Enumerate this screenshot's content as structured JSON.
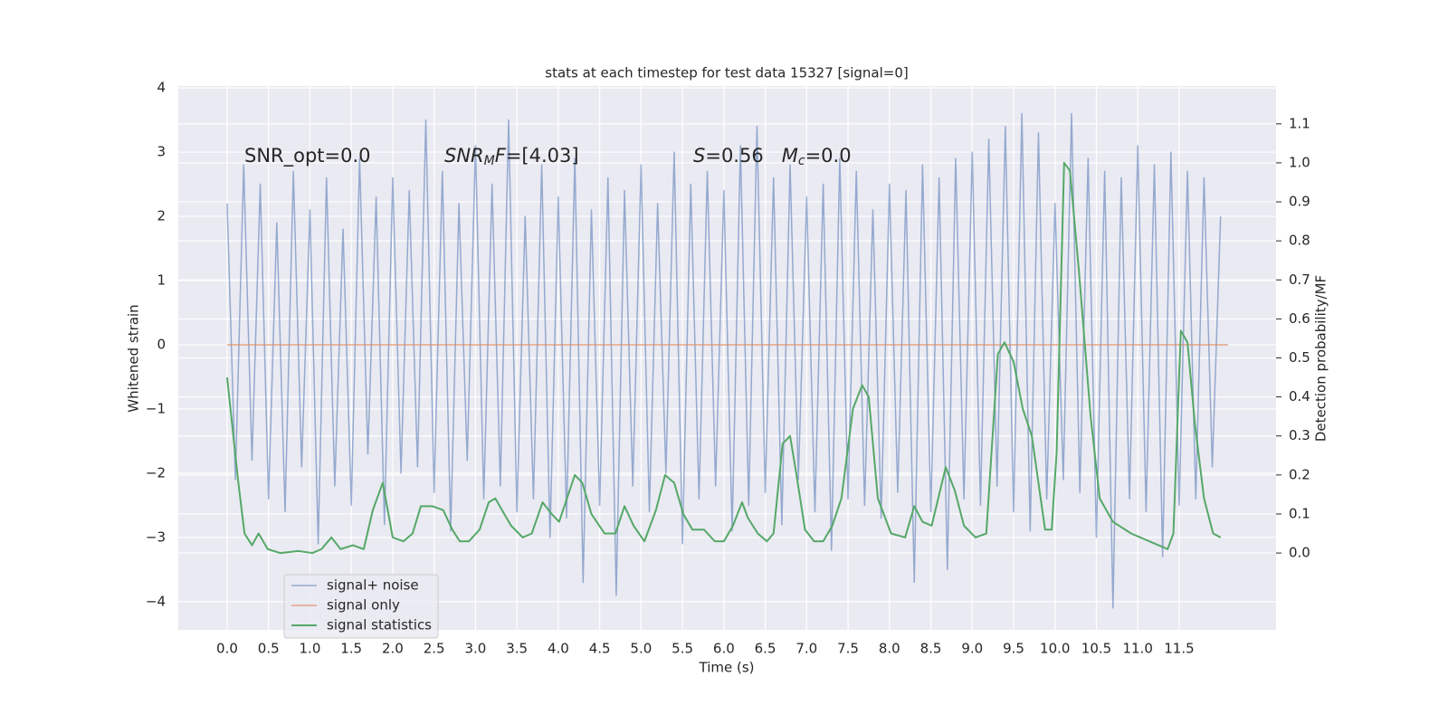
{
  "chart_data": {
    "type": "line",
    "title": "stats at each timestep for test data 15327 [signal=0]",
    "x_label": "Time (s)",
    "y_label": "Whitened strain",
    "y2_label": "Detection probability/MF",
    "grid": true,
    "legend_position": "lower left",
    "xlim": [
      -0.59,
      12.67
    ],
    "ylim": [
      -4.44,
      4.03
    ],
    "y2lim": [
      -0.197,
      1.197
    ],
    "xticks": [
      {
        "value": 0,
        "label": "0.0"
      },
      0.5,
      {
        "value": 1,
        "label": "1.0"
      },
      1.5,
      {
        "value": 2,
        "label": "2.0"
      },
      2.5,
      {
        "value": 3,
        "label": "3.0"
      },
      3.5,
      {
        "value": 4,
        "label": "4.0"
      },
      4.5,
      {
        "value": 5,
        "label": "5.0"
      },
      5.5,
      {
        "value": 6,
        "label": "6.0"
      },
      6.5,
      {
        "value": 7,
        "label": "7.0"
      },
      7.5,
      {
        "value": 8,
        "label": "8.0"
      },
      8.5,
      {
        "value": 9,
        "label": "9.0"
      },
      9.5,
      {
        "value": 10,
        "label": "10.0"
      },
      10.5,
      {
        "value": 11,
        "label": "11.0"
      },
      11.5
    ],
    "yticks": [
      {
        "value": -4,
        "label": "−4"
      },
      {
        "value": -3,
        "label": "−3"
      },
      {
        "value": -2,
        "label": "−2"
      },
      {
        "value": -1,
        "label": "−1"
      },
      0,
      1,
      2,
      3,
      4
    ],
    "y2ticks": [
      {
        "value": 0,
        "label": "0.0"
      },
      0.1,
      0.2,
      0.3,
      0.4,
      0.5,
      0.6,
      0.7,
      0.8,
      0.9,
      {
        "value": 1,
        "label": "1.0"
      },
      1.1
    ],
    "annotations": [
      {
        "parts": [
          {
            "text": "SNR_opt=0.0"
          }
        ]
      },
      {
        "parts": [
          {
            "text": "SNR",
            "italic": true
          },
          {
            "text": "M",
            "italic": true,
            "sub": true
          },
          {
            "text": "F",
            "italic": true
          },
          {
            "text": "=[4.03]"
          }
        ]
      },
      {
        "parts": [
          {
            "text": "S",
            "italic": true
          },
          {
            "text": "=0.56   "
          },
          {
            "text": "M",
            "italic": true
          },
          {
            "text": "c",
            "italic": true,
            "sub": true
          },
          {
            "text": "=0.0"
          }
        ]
      }
    ],
    "series": [
      {
        "name": "signal+ noise",
        "color": "#4c72b0",
        "x": [
          0,
          0.1,
          0.2,
          0.3,
          0.4,
          0.5,
          0.6,
          0.7,
          0.8,
          0.9,
          1,
          1.1,
          1.2,
          1.3,
          1.4,
          1.5,
          1.6,
          1.7,
          1.8,
          1.9,
          2,
          2.1,
          2.2,
          2.3,
          2.4,
          2.5,
          2.6,
          2.7,
          2.8,
          2.9,
          3,
          3.1,
          3.2,
          3.3,
          3.4,
          3.5,
          3.6,
          3.7,
          3.8,
          3.9,
          4,
          4.1,
          4.2,
          4.3,
          4.4,
          4.5,
          4.6,
          4.7,
          4.8,
          4.9,
          5,
          5.1,
          5.2,
          5.3,
          5.4,
          5.5,
          5.6,
          5.7,
          5.8,
          5.9,
          6,
          6.1,
          6.2,
          6.3,
          6.4,
          6.5,
          6.6,
          6.7,
          6.8,
          6.9,
          7,
          7.1,
          7.2,
          7.3,
          7.4,
          7.5,
          7.6,
          7.7,
          7.8,
          7.9,
          8,
          8.1,
          8.2,
          8.3,
          8.4,
          8.5,
          8.6,
          8.7,
          8.8,
          8.9,
          9,
          9.1,
          9.2,
          9.3,
          9.4,
          9.5,
          9.6,
          9.7,
          9.8,
          9.9,
          10,
          10.1,
          10.2,
          10.3,
          10.4,
          10.5,
          10.6,
          10.7,
          10.8,
          10.9,
          11,
          11.1,
          11.2,
          11.3,
          11.4,
          11.5,
          11.6,
          11.7,
          11.8,
          11.9,
          12
        ],
        "values": [
          2.2,
          -2.1,
          2.8,
          -1.8,
          2.5,
          -2.4,
          1.9,
          -2.6,
          2.7,
          -1.9,
          2.1,
          -3.1,
          2.6,
          -2.2,
          1.8,
          -2.5,
          2.9,
          -1.7,
          2.3,
          -2.8,
          2.6,
          -2.0,
          2.4,
          -1.9,
          3.5,
          -2.3,
          2.7,
          -2.9,
          2.2,
          -1.8,
          3.1,
          -2.4,
          2.5,
          -2.2,
          3.5,
          -2.6,
          2.0,
          -2.4,
          2.8,
          -3.0,
          2.3,
          -2.7,
          2.9,
          -3.7,
          2.1,
          -2.5,
          2.6,
          -3.9,
          2.4,
          -2.2,
          2.8,
          -2.6,
          2.2,
          -2.0,
          3.0,
          -3.1,
          2.5,
          -2.4,
          2.7,
          -2.2,
          2.4,
          -2.9,
          3.1,
          -2.5,
          3.4,
          -2.3,
          2.6,
          -2.8,
          2.8,
          -2.1,
          2.3,
          -2.6,
          2.5,
          -3.2,
          2.9,
          -2.4,
          2.7,
          -2.5,
          2.1,
          -2.7,
          2.5,
          -2.3,
          2.4,
          -3.7,
          2.8,
          -2.6,
          2.6,
          -3.5,
          2.9,
          -2.4,
          3.0,
          -2.5,
          3.2,
          -2.2,
          3.4,
          -2.6,
          3.6,
          -2.9,
          3.3,
          -2.4,
          2.2,
          -2.1,
          3.6,
          -2.3,
          2.9,
          -3.0,
          2.7,
          -4.1,
          2.6,
          -2.4,
          3.1,
          -2.6,
          2.8,
          -3.3,
          3.0,
          -2.5,
          2.7,
          -2.4,
          2.6,
          -1.9,
          2.0
        ]
      },
      {
        "name": "signal only",
        "color": "#dd8452",
        "x": [
          0,
          12.09
        ],
        "values": [
          0,
          0
        ]
      },
      {
        "name": "signal statistics",
        "color": "#55a868",
        "axis": "y2",
        "x": [
          0,
          0.13,
          0.21,
          0.3,
          0.38,
          0.49,
          0.64,
          0.86,
          1.03,
          1.14,
          1.26,
          1.37,
          1.52,
          1.65,
          1.76,
          1.88,
          2.0,
          2.13,
          2.24,
          2.34,
          2.48,
          2.61,
          2.72,
          2.81,
          2.92,
          3.05,
          3.16,
          3.24,
          3.32,
          3.43,
          3.57,
          3.68,
          3.81,
          3.92,
          4.01,
          4.2,
          4.29,
          4.4,
          4.56,
          4.69,
          4.8,
          4.91,
          5.04,
          5.18,
          5.29,
          5.4,
          5.51,
          5.62,
          5.76,
          5.89,
          6.0,
          6.11,
          6.22,
          6.29,
          6.41,
          6.52,
          6.6,
          6.71,
          6.8,
          6.87,
          6.98,
          7.09,
          7.2,
          7.31,
          7.42,
          7.56,
          7.67,
          7.75,
          7.86,
          8.02,
          8.19,
          8.3,
          8.4,
          8.51,
          8.68,
          8.79,
          8.9,
          9.04,
          9.17,
          9.31,
          9.39,
          9.5,
          9.61,
          9.72,
          9.88,
          9.96,
          10.02,
          10.11,
          10.18,
          10.29,
          10.43,
          10.54,
          10.7,
          10.92,
          11.14,
          11.25,
          11.36,
          11.43,
          11.52,
          11.6,
          11.69,
          11.8,
          11.91,
          12.0
        ],
        "values": [
          0.45,
          0.19,
          0.05,
          0.02,
          0.05,
          0.01,
          0.0,
          0.005,
          0.0,
          0.01,
          0.04,
          0.01,
          0.02,
          0.01,
          0.11,
          0.18,
          0.04,
          0.03,
          0.05,
          0.12,
          0.12,
          0.11,
          0.06,
          0.03,
          0.03,
          0.06,
          0.13,
          0.14,
          0.11,
          0.07,
          0.04,
          0.05,
          0.13,
          0.1,
          0.08,
          0.2,
          0.18,
          0.1,
          0.05,
          0.05,
          0.12,
          0.07,
          0.03,
          0.11,
          0.2,
          0.18,
          0.1,
          0.06,
          0.06,
          0.03,
          0.03,
          0.07,
          0.13,
          0.09,
          0.05,
          0.03,
          0.05,
          0.28,
          0.3,
          0.21,
          0.06,
          0.03,
          0.03,
          0.07,
          0.14,
          0.37,
          0.43,
          0.4,
          0.14,
          0.05,
          0.04,
          0.12,
          0.08,
          0.07,
          0.22,
          0.16,
          0.07,
          0.04,
          0.05,
          0.51,
          0.54,
          0.49,
          0.37,
          0.3,
          0.06,
          0.06,
          0.26,
          1.0,
          0.98,
          0.72,
          0.35,
          0.14,
          0.08,
          0.05,
          0.03,
          0.02,
          0.01,
          0.05,
          0.57,
          0.54,
          0.33,
          0.14,
          0.05,
          0.04
        ]
      }
    ]
  }
}
